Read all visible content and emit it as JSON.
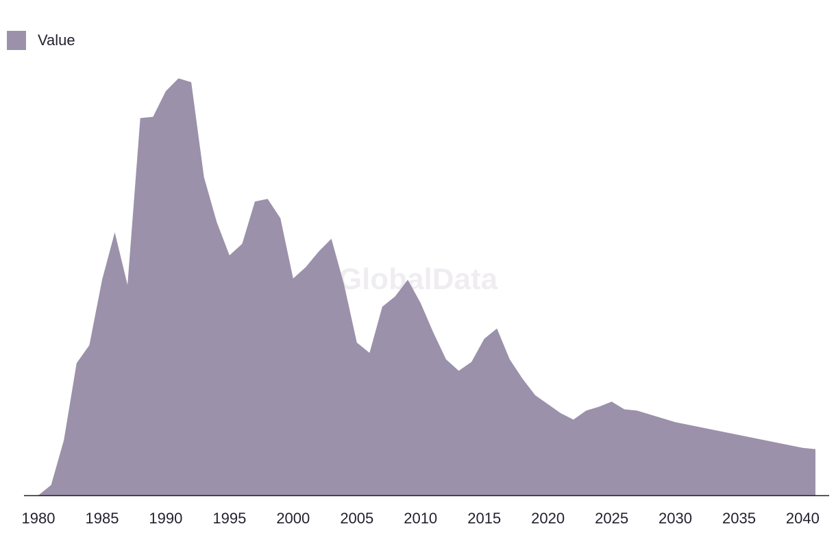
{
  "legend": {
    "label": "Value"
  },
  "watermark": "GlobalData",
  "colors": {
    "area": "#9b91aa",
    "axis": "#1a1a1a",
    "text": "#231f2e"
  },
  "chart_data": {
    "type": "area",
    "title": "",
    "xlabel": "",
    "ylabel": "",
    "legend_position": "top-left",
    "grid": false,
    "xlim": [
      1980,
      2041
    ],
    "ylim": [
      0,
      330
    ],
    "x_ticks": [
      1980,
      1985,
      1990,
      1995,
      2000,
      2005,
      2010,
      2015,
      2020,
      2025,
      2030,
      2035,
      2040
    ],
    "series": [
      {
        "name": "Value",
        "x": [
          1980,
          1981,
          1982,
          1983,
          1984,
          1985,
          1986,
          1987,
          1988,
          1989,
          1990,
          1991,
          1992,
          1993,
          1994,
          1995,
          1996,
          1997,
          1998,
          1999,
          2000,
          2001,
          2002,
          2003,
          2004,
          2005,
          2006,
          2007,
          2008,
          2009,
          2010,
          2011,
          2012,
          2013,
          2014,
          2015,
          2016,
          2017,
          2018,
          2019,
          2020,
          2021,
          2022,
          2023,
          2024,
          2025,
          2026,
          2027,
          2028,
          2029,
          2030,
          2031,
          2032,
          2033,
          2034,
          2035,
          2036,
          2037,
          2038,
          2039,
          2040,
          2041
        ],
        "values": [
          0,
          8,
          43,
          103,
          117,
          168,
          205,
          164,
          294,
          295,
          315,
          325,
          322,
          248,
          213,
          187,
          196,
          229,
          231,
          216,
          169,
          178,
          190,
          200,
          164,
          119,
          111,
          147,
          155,
          168,
          150,
          127,
          106,
          97,
          104,
          122,
          130,
          106,
          91,
          78,
          71,
          64,
          59,
          66,
          69,
          73,
          67,
          66,
          63,
          60,
          57,
          55,
          53,
          51,
          49,
          47,
          45,
          43,
          41,
          39,
          37,
          36
        ]
      }
    ]
  }
}
